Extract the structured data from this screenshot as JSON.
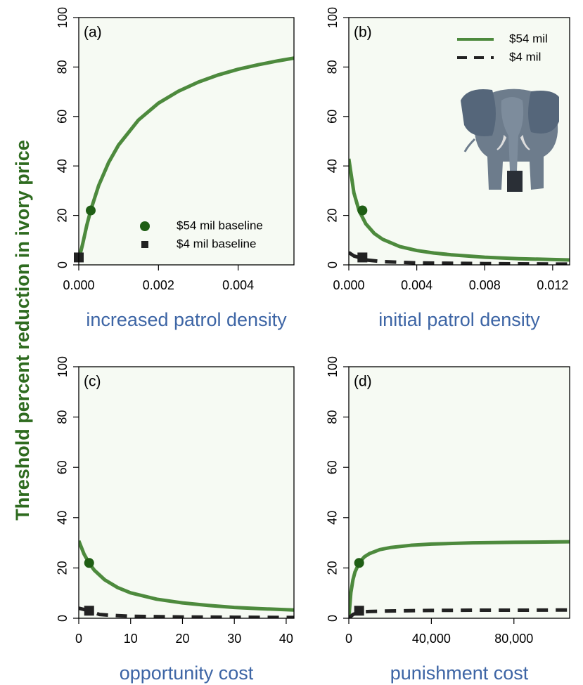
{
  "chart_data": [
    {
      "type": "line",
      "label": "(a)",
      "xlabel": "increased patrol density",
      "ylabel": "Threshold percent reduction in ivory price",
      "xlim": [
        0,
        0.0054
      ],
      "ylim": [
        0,
        100
      ],
      "xticks": [
        {
          "value": 0,
          "label": "0.000"
        },
        0.002,
        0.004
      ],
      "yticks": [
        0,
        20,
        40,
        60,
        80,
        100
      ],
      "legend": "bottom-right",
      "series": [
        {
          "color": "#4d8a3d",
          "dash": false,
          "x": [
            0,
            0.0001,
            0.0002,
            0.0003,
            0.0005,
            0.00075,
            0.001,
            0.0015,
            0.002,
            0.0025,
            0.003,
            0.0035,
            0.004,
            0.0045,
            0.005,
            0.0054
          ],
          "values": [
            2,
            8.6,
            15.9,
            22.1,
            32.1,
            41.4,
            48.5,
            58.6,
            65.4,
            70.2,
            73.9,
            76.8,
            79.1,
            80.9,
            82.5,
            83.6
          ]
        }
      ],
      "points": [
        {
          "name": "$54 mil baseline",
          "marker": "circle",
          "color": "#1f5e14",
          "x": 0.0003,
          "value": 22
        },
        {
          "name": "$4 mil baseline",
          "marker": "square",
          "color": "#222222",
          "x": 0,
          "value": 3
        }
      ]
    },
    {
      "type": "line",
      "label": "(b)",
      "xlabel": "initial patrol density",
      "xlim": [
        0,
        0.013
      ],
      "ylim": [
        0,
        100
      ],
      "xticks": [
        {
          "value": 0,
          "label": "0.000"
        },
        0.004,
        0.008,
        0.012
      ],
      "yticks": [
        0,
        20,
        40,
        60,
        80,
        100
      ],
      "legend": "top-right",
      "series": [
        {
          "name": "$54 mil",
          "color": "#4d8a3d",
          "dash": false,
          "x": [
            0,
            0.0003,
            0.0006,
            0.001,
            0.0015,
            0.002,
            0.003,
            0.004,
            0.005,
            0.006,
            0.008,
            0.01,
            0.013
          ],
          "values": [
            42.9,
            29.1,
            22,
            16.6,
            12.7,
            10.3,
            7.4,
            5.8,
            4.8,
            4.1,
            3.1,
            2.5,
            2
          ]
        },
        {
          "name": "$4 mil",
          "color": "#222222",
          "dash": true,
          "x": [
            0,
            0.0003,
            0.0006,
            0.001,
            0.002,
            0.004,
            0.008,
            0.013
          ],
          "values": [
            5,
            3.6,
            3,
            2,
            1.3,
            0.8,
            0.5,
            0.3
          ]
        }
      ],
      "points": [
        {
          "marker": "circle",
          "color": "#1f5e14",
          "x": 0.0008,
          "value": 22
        },
        {
          "marker": "square",
          "color": "#222222",
          "x": 0.0008,
          "value": 3
        }
      ]
    },
    {
      "type": "line",
      "label": "(c)",
      "xlabel": "opportunity cost",
      "xlim": [
        0,
        41.5
      ],
      "ylim": [
        0,
        100
      ],
      "xticks": [
        0,
        10,
        20,
        30,
        40
      ],
      "yticks": [
        0,
        20,
        40,
        60,
        80,
        100
      ],
      "series": [
        {
          "color": "#4d8a3d",
          "dash": false,
          "x": [
            0,
            1,
            2,
            3,
            5,
            7.5,
            10,
            15,
            20,
            25,
            30,
            35,
            41.5
          ],
          "values": [
            30.8,
            25.6,
            21.9,
            19.1,
            15.3,
            12.2,
            10.1,
            7.6,
            6.1,
            5.1,
            4.3,
            3.8,
            3.3
          ]
        },
        {
          "color": "#222222",
          "dash": true,
          "x": [
            0,
            2,
            4,
            6,
            10,
            20,
            30,
            41.5
          ],
          "values": [
            4,
            3,
            1.5,
            1.2,
            0.8,
            0.5,
            0.4,
            0.3
          ]
        }
      ],
      "points": [
        {
          "marker": "circle",
          "color": "#1f5e14",
          "x": 2,
          "value": 22
        },
        {
          "marker": "square",
          "color": "#222222",
          "x": 2,
          "value": 3
        }
      ]
    },
    {
      "type": "line",
      "label": "(d)",
      "xlabel": "punishment cost",
      "xlim": [
        0,
        107000
      ],
      "ylim": [
        0,
        100
      ],
      "xticks": [
        0,
        {
          "value": 40000,
          "label": "40,000"
        },
        {
          "value": 80000,
          "label": "80,000"
        }
      ],
      "yticks": [
        0,
        20,
        40,
        60,
        80,
        100
      ],
      "series": [
        {
          "color": "#4d8a3d",
          "dash": false,
          "x": [
            0,
            1000,
            2000,
            3000,
            5000,
            7500,
            10000,
            15000,
            20000,
            30000,
            40000,
            60000,
            80000,
            107000
          ],
          "values": [
            0,
            10.2,
            15.3,
            18.4,
            22,
            24.4,
            25.7,
            27.3,
            28.1,
            29,
            29.5,
            30,
            30.2,
            30.4
          ]
        },
        {
          "color": "#222222",
          "dash": true,
          "x": [
            0,
            2000,
            5000,
            10000,
            20000,
            40000,
            60000,
            80000,
            107000
          ],
          "values": [
            0,
            1.5,
            2.5,
            2.7,
            2.9,
            3.1,
            3.2,
            3.2,
            3.3
          ]
        }
      ],
      "points": [
        {
          "marker": "circle",
          "color": "#1f5e14",
          "x": 5000,
          "value": 22
        },
        {
          "marker": "square",
          "color": "#222222",
          "x": 5000,
          "value": 3
        }
      ]
    }
  ]
}
